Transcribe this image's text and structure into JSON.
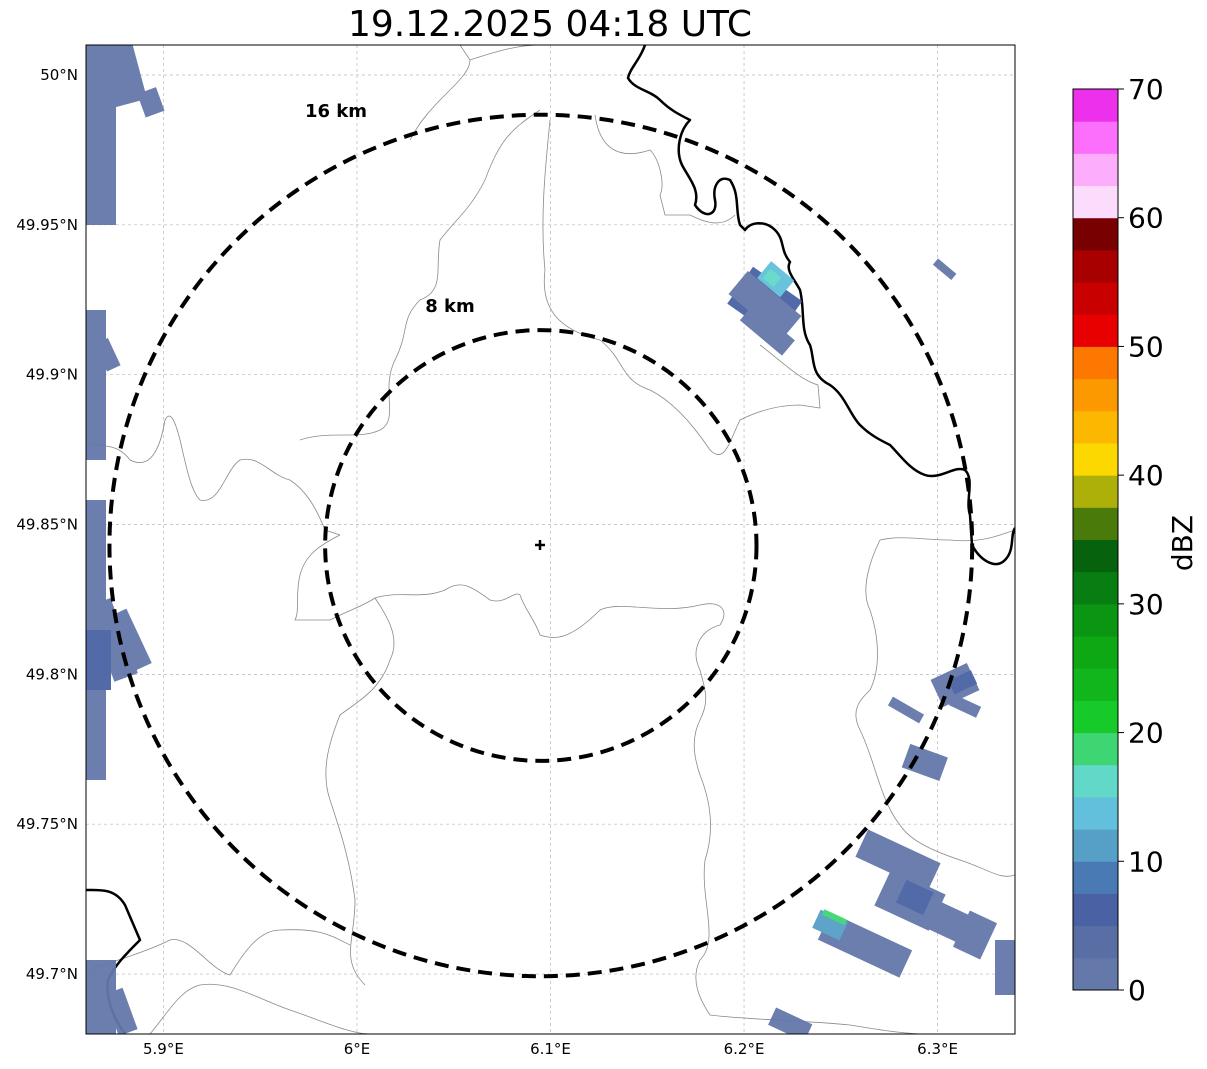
{
  "title": "19.12.2025 04:18 UTC",
  "map": {
    "lon_range": [
      5.86,
      6.34
    ],
    "lat_range": [
      49.68,
      50.01
    ],
    "center": {
      "lon": 6.095,
      "lat": 49.843
    },
    "x_ticks": [
      {
        "value": 5.9,
        "label": "5.9°E"
      },
      {
        "value": 6.0,
        "label": "6°E"
      },
      {
        "value": 6.1,
        "label": "6.1°E"
      },
      {
        "value": 6.2,
        "label": "6.2°E"
      },
      {
        "value": 6.3,
        "label": "6.3°E"
      }
    ],
    "y_ticks": [
      {
        "value": 50.0,
        "label": "50°N"
      },
      {
        "value": 49.95,
        "label": "49.95°N"
      },
      {
        "value": 49.9,
        "label": "49.9°N"
      },
      {
        "value": 49.85,
        "label": "49.85°N"
      },
      {
        "value": 49.8,
        "label": "49.8°N"
      },
      {
        "value": 49.75,
        "label": "49.75°N"
      },
      {
        "value": 49.7,
        "label": "49.7°N"
      }
    ],
    "rings": [
      {
        "km": 8,
        "label": "8 km"
      },
      {
        "km": 16,
        "label": "16 km"
      }
    ],
    "gridlines": true
  },
  "colorbar": {
    "label": "dBZ",
    "min": 0,
    "max": 70,
    "tick_labels": [
      "0",
      "10",
      "20",
      "30",
      "40",
      "50",
      "60",
      "70"
    ],
    "colors": [
      "#6478aa",
      "#5a6ea6",
      "#4a62a4",
      "#4a7ab4",
      "#56a0c8",
      "#62c0dc",
      "#62d8c8",
      "#3ed672",
      "#16ca2a",
      "#10b61c",
      "#0ea814",
      "#0a9612",
      "#087e12",
      "#06620c",
      "#4a7a0a",
      "#aeb00a",
      "#fcd800",
      "#fcb800",
      "#fc9800",
      "#fc7800",
      "#e80000",
      "#c80000",
      "#a80000",
      "#780000",
      "#fcdcfc",
      "#fcaefc",
      "#fc6efc",
      "#ec30ec"
    ]
  }
}
